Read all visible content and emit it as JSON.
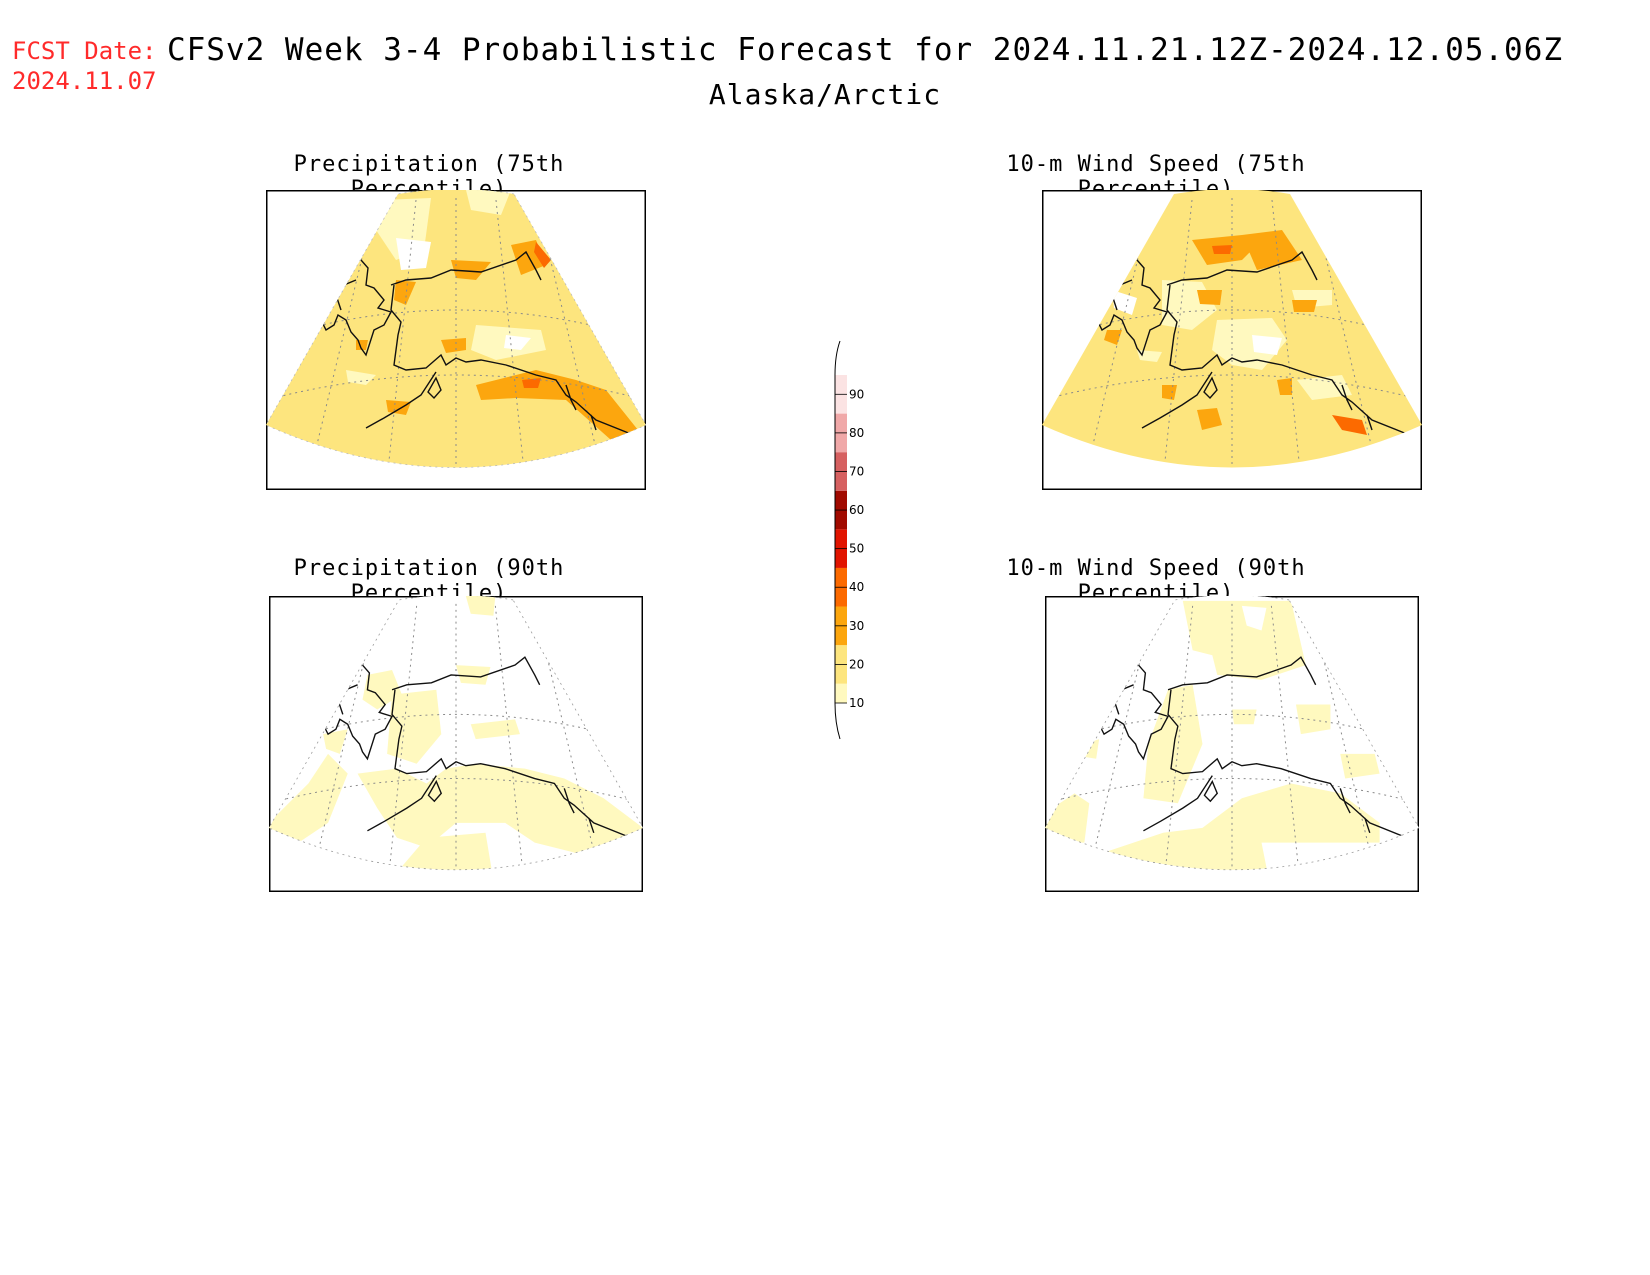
{
  "header": {
    "fcst_label": "FCST Date:",
    "fcst_date": "2024.11.07",
    "title": "CFSv2 Week 3-4 Probabilistic Forecast for 2024.11.21.12Z-2024.12.05.06Z",
    "region": "Alaska/Arctic"
  },
  "panels": [
    {
      "title": "Precipitation (75th Percentile)"
    },
    {
      "title": "10-m Wind Speed (75th Percentile)"
    },
    {
      "title": "Precipitation (90th Percentile)"
    },
    {
      "title": "10-m Wind Speed (90th Percentile)"
    }
  ],
  "colorbar": {
    "labels": [
      "10",
      "20",
      "30",
      "40",
      "50",
      "60",
      "70",
      "80",
      "90"
    ],
    "colors": [
      "#fff9bf",
      "#fde57e",
      "#fca60e",
      "#fc6a00",
      "#e11400",
      "#a10a00",
      "#d66060",
      "#f0a8a8",
      "#fbe3e3"
    ]
  }
}
